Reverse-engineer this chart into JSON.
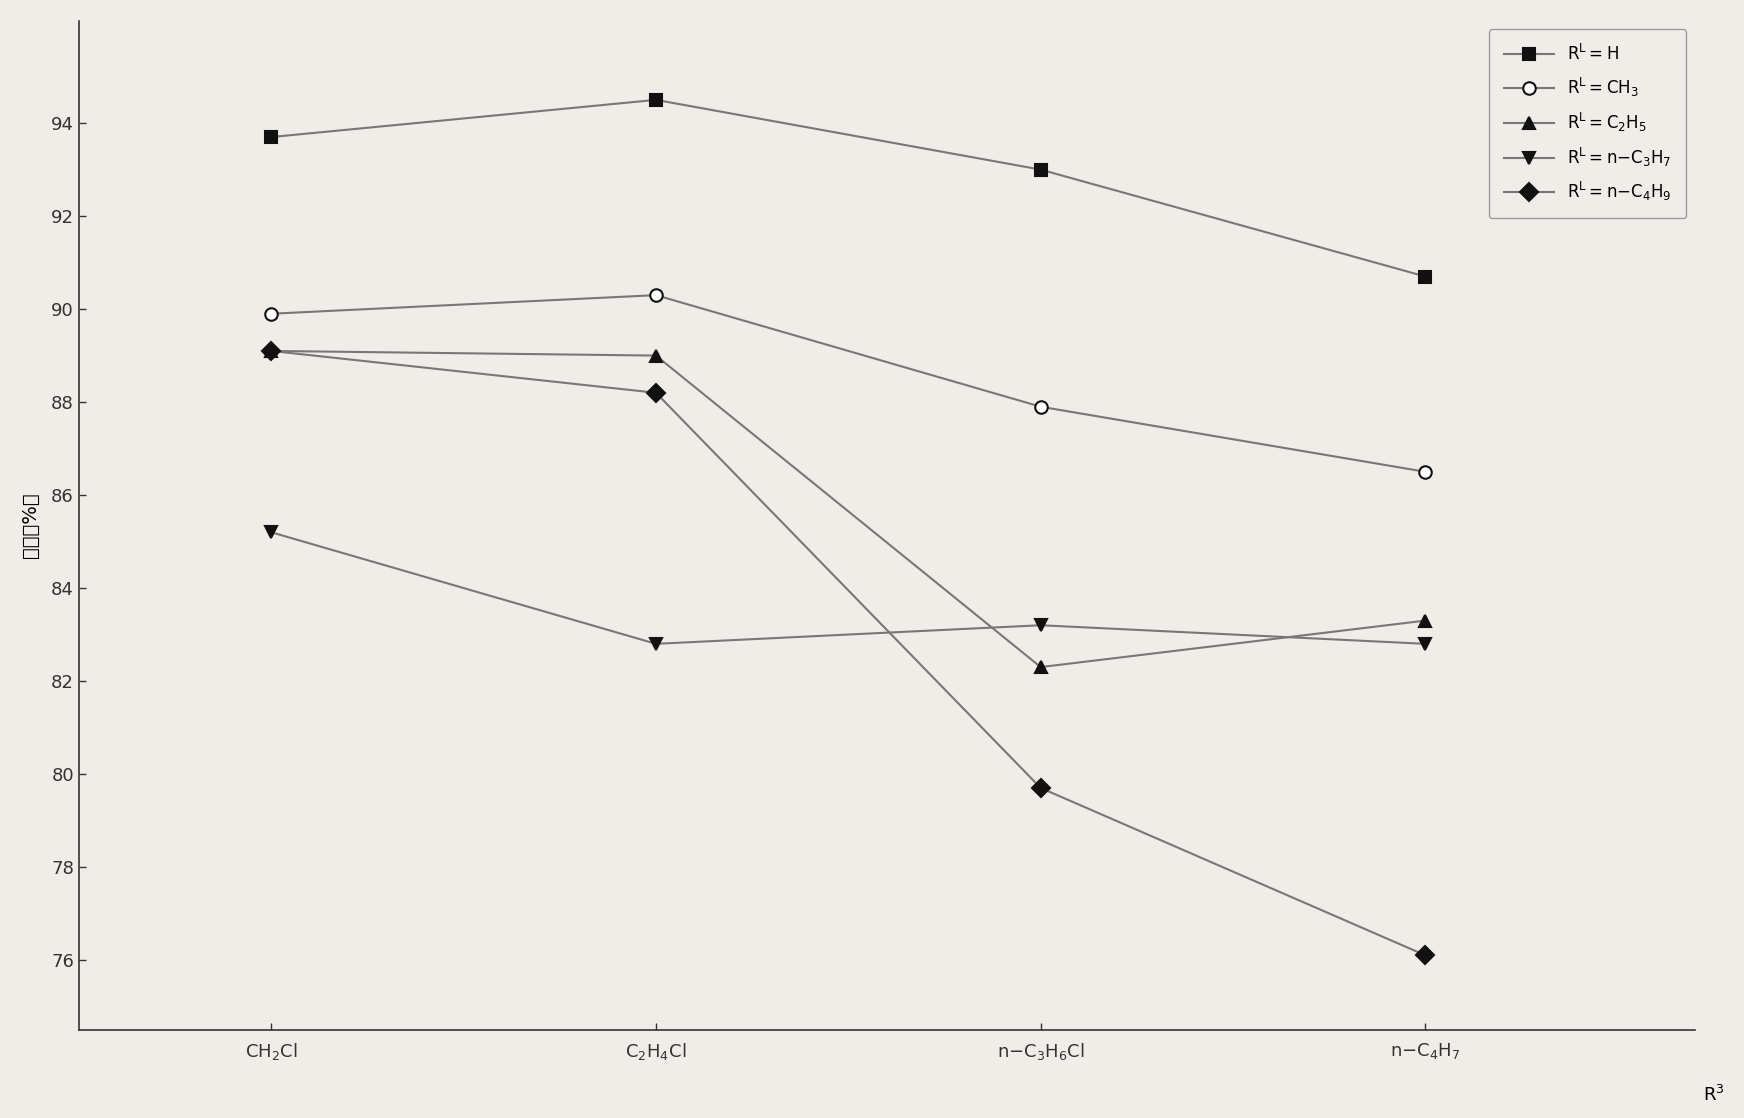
{
  "x_label_raw": [
    "$\\mathrm{CH_2Cl}$",
    "$\\mathrm{C_2H_4Cl}$",
    "$\\mathrm{n{-}C_3H_6Cl}$",
    "$\\mathrm{n{-}C_4H_7}$"
  ],
  "x_subscripts": [
    "2",
    "2 4",
    "3 6",
    "4 7"
  ],
  "x_axis_suffix": "$\\mathrm{R^3}$",
  "ylabel": "收率（%）",
  "ylim": [
    74.5,
    96.2
  ],
  "yticks": [
    76,
    78,
    80,
    82,
    84,
    86,
    88,
    90,
    92,
    94
  ],
  "series": [
    {
      "label": "$\\mathrm{R^L{=}H}$",
      "values": [
        93.7,
        94.5,
        93.0,
        90.7
      ],
      "marker": "s",
      "filled": true
    },
    {
      "label": "$\\mathrm{R^L{=}CH_3}$",
      "values": [
        89.9,
        90.3,
        87.9,
        86.5
      ],
      "marker": "o",
      "filled": false
    },
    {
      "label": "$\\mathrm{R^L{=}C_2H_5}$",
      "values": [
        89.1,
        89.0,
        82.3,
        83.3
      ],
      "marker": "^",
      "filled": true
    },
    {
      "label": "$\\mathrm{R^L{=}n{-}C_3H_7}$",
      "values": [
        85.2,
        82.8,
        83.2,
        82.8
      ],
      "marker": "v",
      "filled": true
    },
    {
      "label": "$\\mathrm{R^L{=}n{-}C_4H_9}$",
      "values": [
        89.1,
        88.2,
        79.7,
        76.1
      ],
      "marker": "D",
      "filled": true
    }
  ],
  "line_color": "#777777",
  "marker_color": "#111111",
  "background_color": "#f0ede8",
  "plot_bg_color": "#f0ede8",
  "figsize": [
    17.44,
    11.18
  ],
  "dpi": 100
}
